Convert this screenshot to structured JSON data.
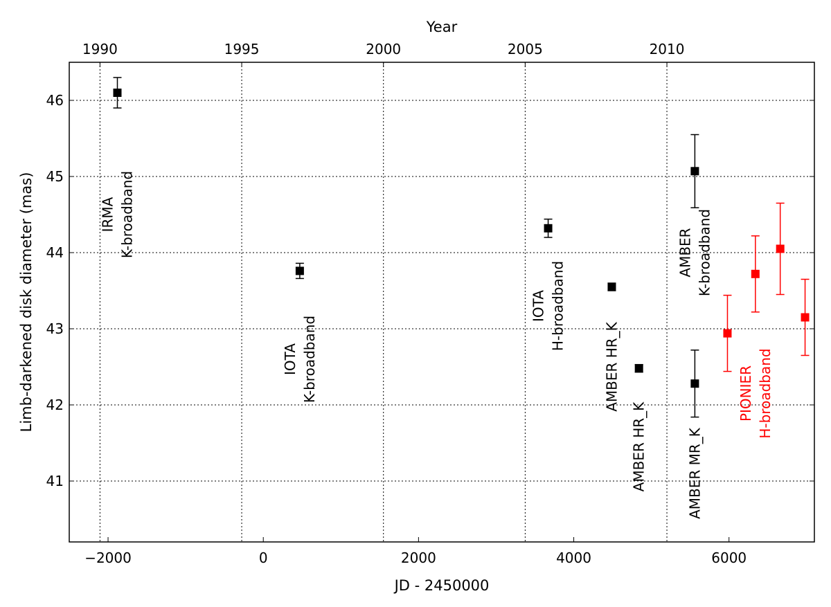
{
  "chart_data": {
    "type": "scatter",
    "xlabel": "JD - 2450000",
    "ylabel": "Limb-darkened disk diameter (mas)",
    "top_axis_label": "Year",
    "xlim": [
      -2500,
      7100
    ],
    "ylim": [
      40.2,
      46.5
    ],
    "grid": true,
    "x_ticks": [
      -2000,
      0,
      2000,
      4000,
      6000
    ],
    "x_tick_labels": [
      "−2000",
      "0",
      "2000",
      "4000",
      "6000"
    ],
    "y_ticks": [
      41,
      42,
      43,
      44,
      45,
      46
    ],
    "y_tick_labels": [
      "41",
      "42",
      "43",
      "44",
      "45",
      "46"
    ],
    "top_ticks": [
      -2104,
      -278,
      1548,
      3374,
      5200
    ],
    "top_tick_labels": [
      "1990",
      "1995",
      "2000",
      "2005",
      "2010"
    ],
    "series": [
      {
        "color": "#000000",
        "points": [
          {
            "x": -1880,
            "y": 46.1,
            "yerr": 0.2
          },
          {
            "x": 470,
            "y": 43.76,
            "yerr": 0.1
          },
          {
            "x": 3670,
            "y": 44.32,
            "yerr": 0.12
          },
          {
            "x": 4490,
            "y": 43.55,
            "yerr": 0.05
          },
          {
            "x": 4840,
            "y": 42.48,
            "yerr": 0.05
          },
          {
            "x": 5560,
            "y": 45.07,
            "yerr": 0.48
          },
          {
            "x": 5560,
            "y": 42.28,
            "yerr": 0.44
          }
        ]
      },
      {
        "color": "#ff0000",
        "points": [
          {
            "x": 5980,
            "y": 42.94,
            "yerr": 0.5
          },
          {
            "x": 6340,
            "y": 43.72,
            "yerr": 0.5
          },
          {
            "x": 6660,
            "y": 44.05,
            "yerr": 0.6
          },
          {
            "x": 6980,
            "y": 43.15,
            "yerr": 0.5
          }
        ]
      }
    ],
    "annotations": [
      {
        "lines": [
          "IRMA",
          "K-broadband"
        ],
        "x": -1880,
        "y": 44.5,
        "color": "#000000"
      },
      {
        "lines": [
          "IOTA",
          "K-broadband"
        ],
        "x": 470,
        "y": 42.6,
        "color": "#000000"
      },
      {
        "lines": [
          "IOTA",
          "H-broadband"
        ],
        "x": 3670,
        "y": 43.3,
        "color": "#000000"
      },
      {
        "lines": [
          "AMBER HR_K"
        ],
        "x": 4490,
        "y": 42.5,
        "color": "#000000"
      },
      {
        "lines": [
          "AMBER HR_K"
        ],
        "x": 4840,
        "y": 41.45,
        "color": "#000000"
      },
      {
        "lines": [
          "AMBER",
          "K-broadband"
        ],
        "x": 5560,
        "y": 44.0,
        "color": "#000000"
      },
      {
        "lines": [
          "AMBER MR_K"
        ],
        "x": 5560,
        "y": 41.1,
        "color": "#000000"
      },
      {
        "lines": [
          "PIONIER",
          "H-broadband"
        ],
        "x": 6340,
        "y": 42.15,
        "color": "#ff0000"
      }
    ]
  }
}
